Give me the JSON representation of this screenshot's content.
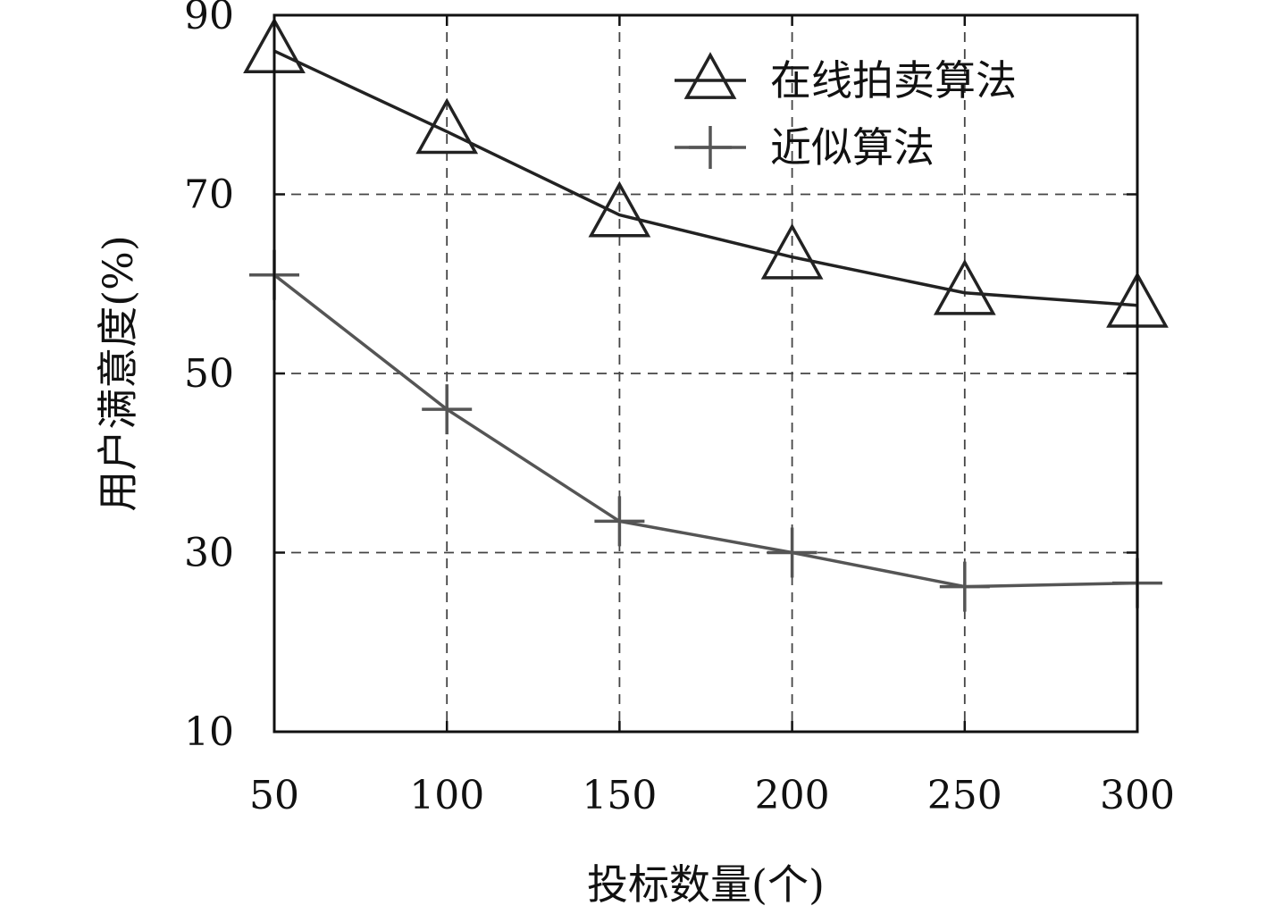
{
  "chart_data": {
    "type": "line",
    "xlabel": "投标数量(个)",
    "ylabel": "用户满意度(%)",
    "x": [
      50,
      100,
      150,
      200,
      250,
      300
    ],
    "x_tick_labels": [
      "50",
      "100",
      "150",
      "200",
      "250",
      "300"
    ],
    "y_tick_labels": [
      "10",
      "30",
      "50",
      "70",
      "90"
    ],
    "y_ticks": [
      10,
      30,
      50,
      70,
      90
    ],
    "xlim": [
      50,
      300
    ],
    "ylim": [
      10,
      90
    ],
    "grid": true,
    "legend_position": "top-right",
    "series": [
      {
        "name": "在线拍卖算法",
        "marker": "triangle",
        "color": "#222222",
        "values": [
          86,
          77,
          67.7,
          63,
          59,
          57.6
        ]
      },
      {
        "name": "近似算法",
        "marker": "plus",
        "color": "#555555",
        "values": [
          61,
          46,
          33.5,
          30,
          26.2,
          26.6
        ]
      }
    ]
  }
}
